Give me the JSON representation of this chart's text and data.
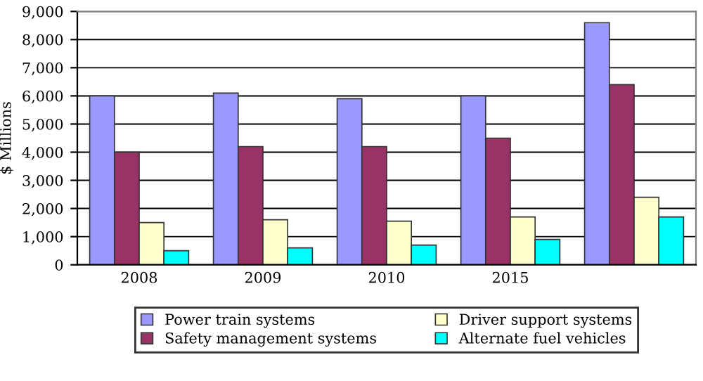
{
  "chart_data": {
    "type": "bar",
    "ylabel": "$ Millions",
    "categories": [
      "2008",
      "2009",
      "2010",
      "2015",
      null
    ],
    "series": [
      {
        "name": "Power train systems",
        "color": "#9999ff",
        "values": [
          6000,
          6100,
          5900,
          6000,
          8600
        ]
      },
      {
        "name": "Safety management systems",
        "color": "#993366",
        "values": [
          4000,
          4200,
          4200,
          4500,
          6400
        ]
      },
      {
        "name": "Driver support systems",
        "color": "#ffffcc",
        "values": [
          1500,
          1600,
          1550,
          1700,
          2400
        ]
      },
      {
        "name": "Alternate fuel vehicles",
        "color": "#00ffff",
        "values": [
          500,
          600,
          700,
          900,
          1700
        ]
      }
    ],
    "ylim": [
      0,
      9000
    ],
    "yticks": [
      {
        "value": 0,
        "label": "0"
      },
      {
        "value": 1000,
        "label": "1,000"
      },
      {
        "value": 2000,
        "label": "2,000"
      },
      {
        "value": 3000,
        "label": "3,000"
      },
      {
        "value": 4000,
        "label": "4,000"
      },
      {
        "value": 5000,
        "label": "5,000"
      },
      {
        "value": 6000,
        "label": "6,000"
      },
      {
        "value": 7000,
        "label": "7,000"
      },
      {
        "value": 8000,
        "label": "8,000"
      },
      {
        "value": 9000,
        "label": "9,000"
      }
    ],
    "grid": "y",
    "legend": "bottom"
  }
}
